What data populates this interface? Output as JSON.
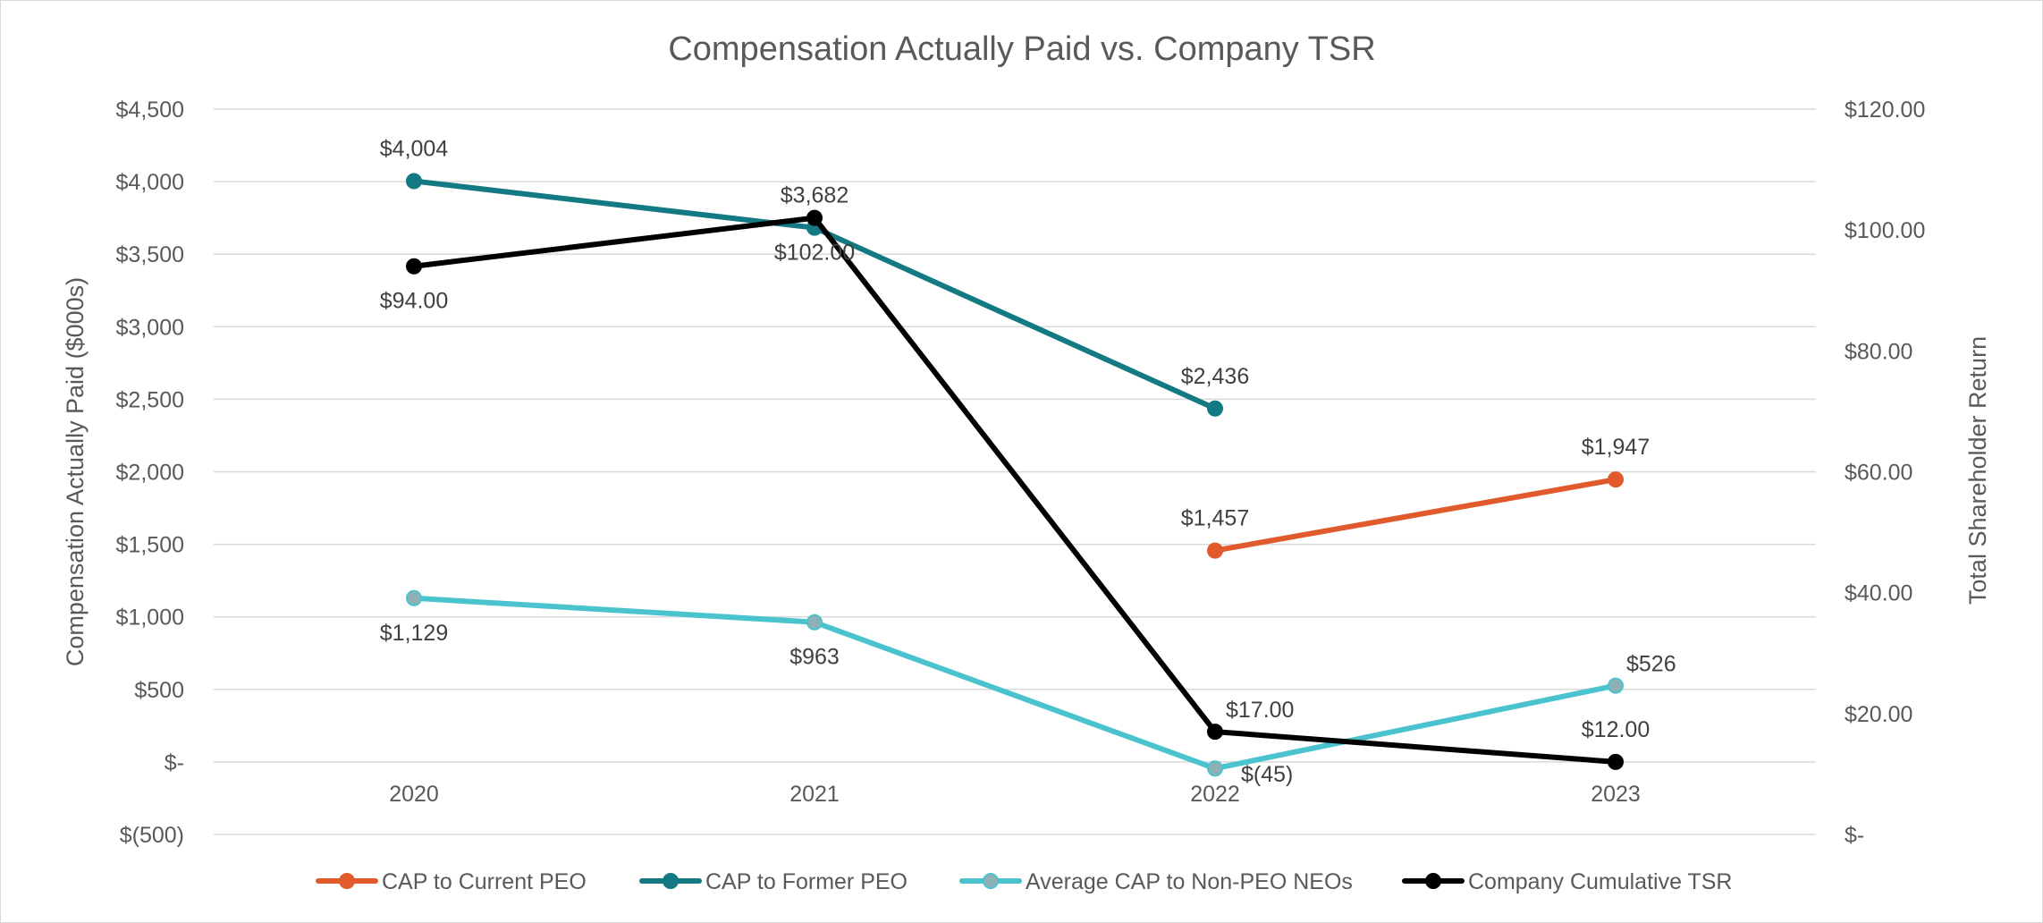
{
  "chart_data": {
    "type": "line",
    "title": "Compensation Actually Paid vs. Company TSR",
    "categories": [
      "2020",
      "2021",
      "2022",
      "2023"
    ],
    "left_axis": {
      "label": "Compensation Actually Paid ($000s)",
      "range": [
        -500,
        4500
      ],
      "ticks": [
        {
          "value": 4500,
          "label": "$4,500"
        },
        {
          "value": 4000,
          "label": "$4,000"
        },
        {
          "value": 3500,
          "label": "$3,500"
        },
        {
          "value": 3000,
          "label": "$3,000"
        },
        {
          "value": 2500,
          "label": "$2,500"
        },
        {
          "value": 2000,
          "label": "$2,000"
        },
        {
          "value": 1500,
          "label": "$1,500"
        },
        {
          "value": 1000,
          "label": "$1,000"
        },
        {
          "value": 500,
          "label": "$500"
        },
        {
          "value": 0,
          "label": "$-"
        },
        {
          "value": -500,
          "label": "$(500)"
        }
      ]
    },
    "right_axis": {
      "label": "Total Shareholder Return",
      "range": [
        0,
        120
      ],
      "ticks": [
        {
          "value": 120,
          "label": "$120.00"
        },
        {
          "value": 100,
          "label": "$100.00"
        },
        {
          "value": 80,
          "label": "$80.00"
        },
        {
          "value": 60,
          "label": "$60.00"
        },
        {
          "value": 40,
          "label": "$40.00"
        },
        {
          "value": 20,
          "label": "$20.00"
        },
        {
          "value": 0,
          "label": "$-"
        }
      ]
    },
    "grid": true,
    "legend_position": "bottom",
    "series": [
      {
        "name": "CAP to Current PEO",
        "axis": "left",
        "color": "#e05a2b",
        "values": [
          null,
          null,
          1457,
          1947
        ],
        "labels": [
          null,
          null,
          "$1,457",
          "$1,947"
        ],
        "label_placement": [
          "",
          "",
          "above",
          "above"
        ]
      },
      {
        "name": "CAP to Former PEO",
        "axis": "left",
        "color": "#137a84",
        "values": [
          4004,
          3682,
          2436,
          null
        ],
        "labels": [
          "$4,004",
          "$3,682",
          "$2,436",
          null
        ],
        "label_placement": [
          "above",
          "above",
          "above",
          ""
        ]
      },
      {
        "name": "Average CAP to Non-PEO NEOs",
        "axis": "left",
        "color": "#4bc3cf",
        "marker_color": "#8fb0b5",
        "values": [
          1129,
          963,
          -45,
          526
        ],
        "labels": [
          "$1,129",
          "$963",
          "$(45)",
          "$526"
        ],
        "label_placement": [
          "below",
          "below",
          "below-right",
          "above-right"
        ]
      },
      {
        "name": "Company Cumulative TSR",
        "axis": "right",
        "color": "#000000",
        "values": [
          94,
          102,
          17,
          12
        ],
        "labels": [
          "$94.00",
          "$102.00",
          "$17.00",
          "$12.00"
        ],
        "label_placement": [
          "below",
          "below",
          "above-right",
          "above"
        ]
      }
    ]
  }
}
